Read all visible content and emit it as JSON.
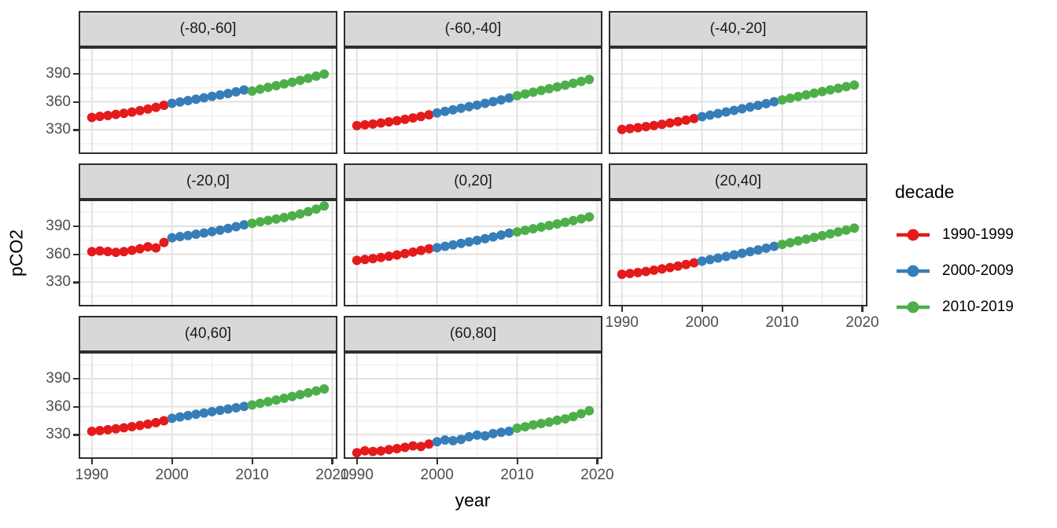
{
  "figure": {
    "x_axis_title": "year",
    "y_axis_title": "pCO2",
    "x_ticks": [
      1990,
      2000,
      2010,
      2020
    ],
    "x_minor_ticks": [
      1995,
      2005,
      2015
    ],
    "y_ticks": [
      390,
      360,
      330
    ],
    "y_minor_ticks": [
      315,
      345,
      375,
      405
    ],
    "xlim": [
      1988.55,
      2020.45
    ],
    "ylim": [
      305.6,
      417.0
    ],
    "theme": {
      "panel_bg": "#FFFFFF",
      "grid_major": "#E2E2E2",
      "grid_minor": "#F2F2F2",
      "panel_border": "#2E2E2E",
      "strip_bg": "#D8D8D8",
      "axis_text_color": "#4D4D4D",
      "tick_color": "#333333"
    }
  },
  "legend": {
    "title": "decade",
    "entries": [
      {
        "label": "1990-1999",
        "color": "#E41A1C"
      },
      {
        "label": "2000-2009",
        "color": "#377EB8"
      },
      {
        "label": "2010-2019",
        "color": "#4DAF4A"
      }
    ]
  },
  "chart_data": {
    "type": "scatter",
    "x_variable": "year",
    "y_variable": "pCO2",
    "group_variable": "decade",
    "facet_variable": "latitude band",
    "grid": true,
    "legend_position": "right",
    "xlim": [
      1988.55,
      2020.45
    ],
    "ylim": [
      305.6,
      417.0
    ],
    "years": [
      1990,
      1991,
      1992,
      1993,
      1994,
      1995,
      1996,
      1997,
      1998,
      1999,
      2000,
      2001,
      2002,
      2003,
      2004,
      2005,
      2006,
      2007,
      2008,
      2009,
      2010,
      2011,
      2012,
      2013,
      2014,
      2015,
      2016,
      2017,
      2018,
      2019
    ],
    "decades": [
      {
        "name": "1990-1999",
        "color": "#E41A1C",
        "year_start": 1990,
        "year_end": 1999
      },
      {
        "name": "2000-2009",
        "color": "#377EB8",
        "year_start": 2000,
        "year_end": 2009
      },
      {
        "name": "2010-2019",
        "color": "#4DAF4A",
        "year_start": 2010,
        "year_end": 2019
      }
    ],
    "facets": [
      {
        "label": "(-80,-60]",
        "values": [
          343.2,
          344.3,
          345.3,
          346.4,
          347.6,
          349.0,
          350.5,
          352.2,
          354.0,
          356.2,
          358.3,
          359.8,
          361.3,
          362.8,
          364.3,
          365.8,
          367.3,
          368.9,
          370.7,
          372.7,
          371.5,
          373.5,
          375.5,
          377.3,
          379.2,
          381.0,
          383.0,
          385.2,
          387.6,
          389.8
        ]
      },
      {
        "label": "(-60,-40]",
        "values": [
          334.4,
          335.2,
          336.1,
          337.2,
          338.4,
          339.7,
          341.1,
          342.6,
          344.2,
          346.0,
          348.0,
          349.7,
          351.4,
          353.1,
          354.8,
          356.5,
          358.3,
          360.1,
          362.0,
          364.0,
          366.5,
          368.4,
          370.3,
          372.2,
          374.1,
          376.0,
          377.9,
          379.9,
          381.9,
          384.0
        ]
      },
      {
        "label": "(-40,-20]",
        "values": [
          330.3,
          331.2,
          332.2,
          333.3,
          334.5,
          335.8,
          337.2,
          338.7,
          340.3,
          342.0,
          344.0,
          345.7,
          347.4,
          349.1,
          350.8,
          352.5,
          354.3,
          356.1,
          358.0,
          360.0,
          362.0,
          363.8,
          365.6,
          367.4,
          369.2,
          371.0,
          372.8,
          374.5,
          376.3,
          378.0
        ]
      },
      {
        "label": "(-20,0]",
        "values": [
          362.8,
          363.5,
          362.9,
          362.0,
          362.8,
          364.2,
          365.8,
          367.9,
          366.8,
          372.6,
          377.6,
          378.9,
          380.1,
          381.4,
          382.8,
          384.3,
          385.9,
          387.7,
          389.6,
          391.6,
          393.2,
          394.8,
          396.3,
          397.8,
          399.4,
          401.2,
          403.3,
          405.7,
          408.5,
          411.8
        ]
      },
      {
        "label": "(0,20]",
        "values": [
          353.4,
          354.3,
          355.3,
          356.5,
          357.8,
          359.2,
          360.7,
          362.3,
          364.0,
          365.8,
          367.0,
          368.5,
          370.0,
          371.6,
          373.2,
          374.9,
          376.7,
          378.6,
          380.6,
          382.7,
          384.0,
          385.7,
          387.4,
          389.1,
          390.8,
          392.5,
          394.3,
          396.1,
          398.0,
          400.0
        ]
      },
      {
        "label": "(20,40]",
        "values": [
          338.4,
          339.3,
          340.3,
          341.5,
          342.8,
          344.2,
          345.7,
          347.3,
          349.0,
          350.8,
          352.5,
          354.2,
          355.9,
          357.6,
          359.3,
          361.0,
          362.8,
          364.6,
          366.5,
          368.5,
          370.5,
          372.4,
          374.3,
          376.2,
          378.1,
          380.0,
          381.9,
          383.9,
          385.9,
          388.0
        ]
      },
      {
        "label": "(40,60]",
        "values": [
          333.5,
          334.3,
          335.2,
          336.2,
          337.3,
          338.5,
          339.8,
          341.2,
          342.8,
          344.8,
          347.5,
          349.0,
          350.4,
          351.8,
          353.2,
          354.6,
          356.0,
          357.4,
          358.8,
          360.2,
          361.8,
          363.5,
          365.3,
          367.1,
          369.0,
          370.9,
          372.9,
          374.9,
          376.9,
          379.0
        ]
      },
      {
        "label": "(60,80]",
        "values": [
          310.4,
          312.6,
          311.8,
          312.4,
          313.8,
          314.9,
          316.3,
          317.8,
          317.2,
          319.8,
          322.3,
          324.2,
          323.4,
          324.8,
          327.6,
          329.4,
          328.6,
          331.0,
          332.4,
          333.6,
          336.8,
          338.4,
          340.3,
          341.9,
          343.4,
          345.4,
          346.9,
          349.4,
          352.4,
          355.6
        ]
      }
    ]
  }
}
